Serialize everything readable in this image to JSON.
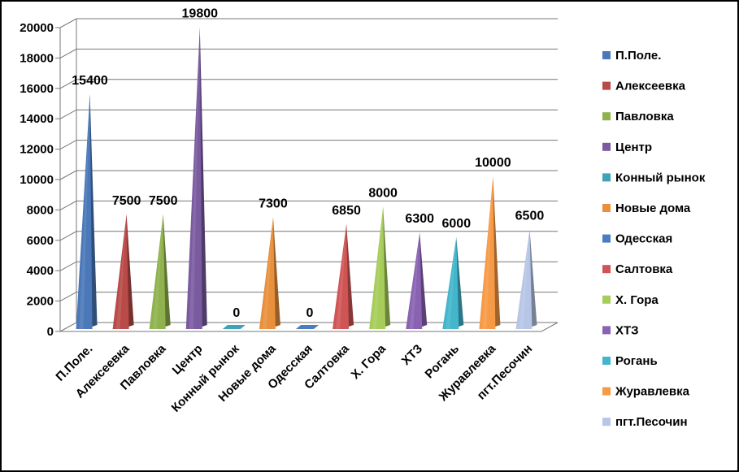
{
  "chart_data": {
    "type": "bar",
    "bar_shape": "pyramid-3d",
    "title": "",
    "xlabel": "",
    "ylabel": "",
    "ylim": [
      0,
      20000
    ],
    "y_ticks": [
      0,
      2000,
      4000,
      6000,
      8000,
      10000,
      12000,
      14000,
      16000,
      18000,
      20000
    ],
    "grid": true,
    "legend_position": "right",
    "categories": [
      "П.Поле.",
      "Алексеевка",
      "Павловка",
      "Центр",
      "Конный рынок",
      "Новые дома",
      "Одесская",
      "Салтовка",
      "Х. Гора",
      "ХТЗ",
      "Рогань",
      "Журавлевка",
      "пгт.Песочин"
    ],
    "values": [
      15400,
      7500,
      7500,
      19800,
      0,
      7300,
      0,
      6850,
      8000,
      6300,
      6000,
      10000,
      6500
    ],
    "data_labels": [
      "15400",
      "7500",
      "7500",
      "19800",
      "0",
      "7300",
      "0",
      "6850",
      "8000",
      "6300",
      "6000",
      "10000",
      "6500"
    ],
    "colors": [
      "#4a78b8",
      "#b84a48",
      "#8fb24e",
      "#7a5ba0",
      "#3ea3b8",
      "#e8903c",
      "#4a7cc0",
      "#cf5554",
      "#a6cc5a",
      "#8a62b2",
      "#44b6cc",
      "#f79a46",
      "#b7c6e6"
    ],
    "legend": [
      "П.Поле.",
      "Алексеевка",
      "Павловка",
      "Центр",
      "Конный рынок",
      "Новые дома",
      "Одесская",
      "Салтовка",
      "Х. Гора",
      "ХТЗ",
      "Рогань",
      "Журавлевка",
      "пгт.Песочин"
    ]
  }
}
